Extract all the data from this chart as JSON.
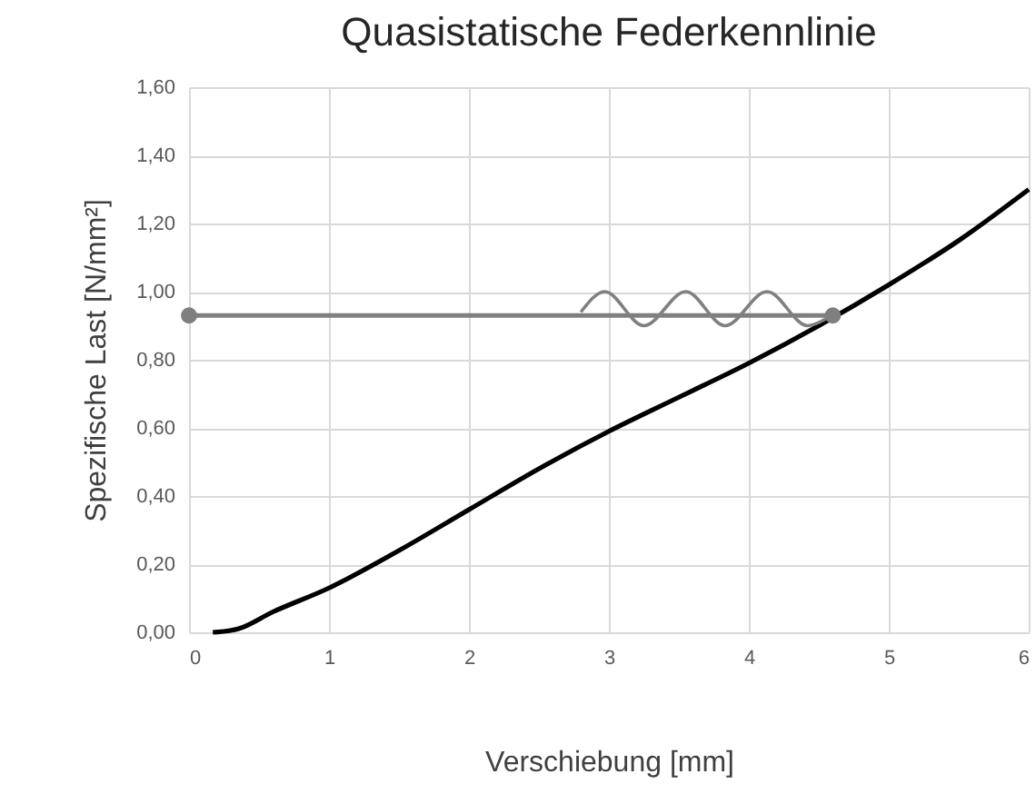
{
  "chart_data": {
    "type": "line",
    "title": "Quasistatische Federkennlinie",
    "xlabel": "Verschiebung [mm]",
    "ylabel": "Spezifische Last [N/mm²]",
    "xlim": [
      0,
      6
    ],
    "xticks": [
      0,
      1,
      2,
      3,
      4,
      5,
      6
    ],
    "ylim": [
      0,
      1.6
    ],
    "yticks": [
      {
        "value": 0,
        "label": "0,00"
      },
      {
        "value": 0.2,
        "label": "0,20"
      },
      {
        "value": 0.4,
        "label": "0,40"
      },
      {
        "value": 0.6,
        "label": "0,60"
      },
      {
        "value": 0.8,
        "label": "0,80"
      },
      {
        "value": 1,
        "label": "1,00"
      },
      {
        "value": 1.2,
        "label": "1,20"
      },
      {
        "value": 1.4,
        "label": "1,40"
      },
      {
        "value": 1.6,
        "label": "1,60"
      }
    ],
    "grid": true,
    "series": [
      {
        "color": "#000000",
        "marker": "none",
        "x": [
          0.17,
          0.35,
          0.6,
          1,
          1.5,
          2,
          2.5,
          3,
          3.5,
          4,
          4.5,
          5,
          5.5,
          6
        ],
        "values": [
          0,
          0.01,
          0.06,
          0.13,
          0.24,
          0.36,
          0.48,
          0.59,
          0.69,
          0.79,
          0.9,
          1.02,
          1.15,
          1.3
        ]
      },
      {
        "color": "#7f7f7f",
        "marker": "circle",
        "x": [
          0,
          4.6
        ],
        "values": [
          0.93,
          0.93
        ]
      },
      {
        "color": "#808080",
        "marker": "none",
        "x": [
          2.8,
          2.97,
          3.25,
          3.55,
          3.83,
          4.13,
          4.42,
          4.55
        ],
        "values": [
          0.94,
          1,
          0.9,
          1,
          0.9,
          1,
          0.9,
          0.92
        ]
      }
    ]
  }
}
